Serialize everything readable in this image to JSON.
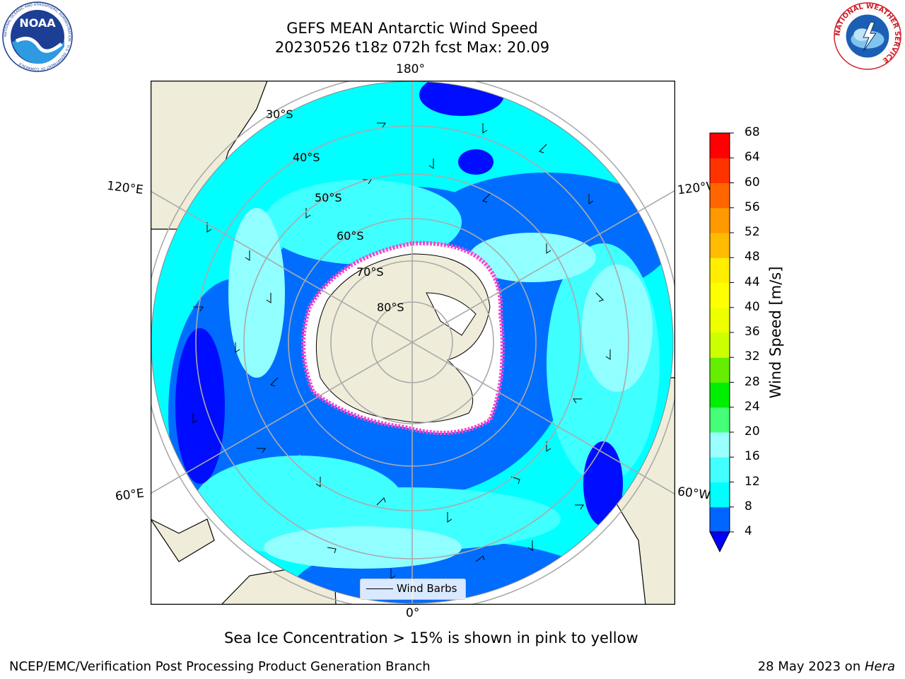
{
  "title": {
    "line1": "GEFS MEAN Antarctic Wind Speed",
    "line2": "20230526 t18z 072h fcst   Max: 20.09"
  },
  "map": {
    "longitude_labels": {
      "top": "180°",
      "bottom": "0°",
      "upper_left": "120°E",
      "upper_right": "120°W",
      "lower_left": "60°E",
      "lower_right": "60°W"
    },
    "latitude_labels": [
      "30°S",
      "40°S",
      "50°S",
      "60°S",
      "70°S",
      "80°S"
    ],
    "legend_label": "Wind Barbs"
  },
  "colorbar": {
    "label": "Wind Speed [m/s]",
    "ticks": [
      "4",
      "8",
      "12",
      "16",
      "20",
      "24",
      "28",
      "32",
      "36",
      "40",
      "44",
      "48",
      "52",
      "56",
      "60",
      "64",
      "68"
    ],
    "colors": [
      "#0066ff",
      "#00ffff",
      "#44ffff",
      "#99ffff",
      "#44ff77",
      "#00ee00",
      "#66ee00",
      "#ccff00",
      "#eeff00",
      "#ffff00",
      "#ffee00",
      "#ffbb00",
      "#ff9900",
      "#ff6600",
      "#ff3300",
      "#ff0000"
    ],
    "extend_color": "#0000ff"
  },
  "caption": "Sea Ice Concentration > 15% is shown in pink to yellow",
  "footer": {
    "left": "NCEP/EMC/Verification Post Processing Product Generation Branch",
    "right_prefix": "28 May 2023 on ",
    "right_italic": "Hera"
  },
  "logos": {
    "noaa": {
      "text": "NOAA",
      "ring": "NATIONAL OCEANIC AND ATMOSPHERIC ADMINISTRATION · U.S. DEPARTMENT OF COMMERCE"
    },
    "nws": {
      "ring": "NATIONAL WEATHER SERVICE"
    }
  }
}
